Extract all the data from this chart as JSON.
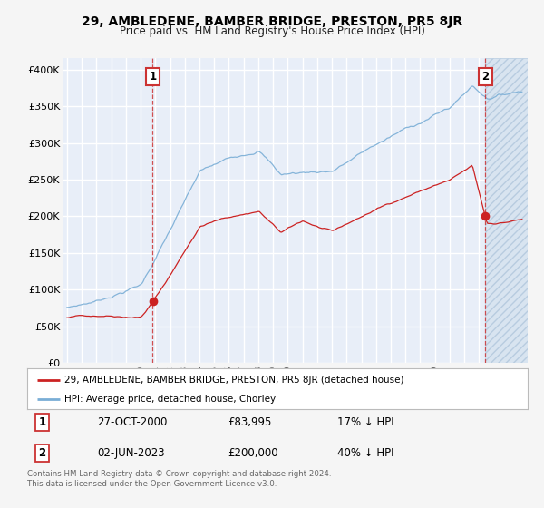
{
  "title": "29, AMBLEDENE, BAMBER BRIDGE, PRESTON, PR5 8JR",
  "subtitle": "Price paid vs. HM Land Registry's House Price Index (HPI)",
  "background_color": "#f5f5f5",
  "plot_bg_color": "#e8eef8",
  "grid_color": "#ffffff",
  "hpi_line_color": "#7aaed6",
  "price_line_color": "#cc2222",
  "vline_color": "#cc3333",
  "marker_color": "#cc2222",
  "sale1_date_num": 2000.82,
  "sale1_price": 83995,
  "sale2_date_num": 2023.42,
  "sale2_price": 200000,
  "yticks": [
    0,
    50000,
    100000,
    150000,
    200000,
    250000,
    300000,
    350000,
    400000
  ],
  "ytick_labels": [
    "£0",
    "£50K",
    "£100K",
    "£150K",
    "£200K",
    "£250K",
    "£300K",
    "£350K",
    "£400K"
  ],
  "xmin": 1994.7,
  "xmax": 2026.3,
  "ymin": 0,
  "ymax": 415000,
  "legend_line1": "29, AMBLEDENE, BAMBER BRIDGE, PRESTON, PR5 8JR (detached house)",
  "legend_line2": "HPI: Average price, detached house, Chorley",
  "table_row1": [
    "1",
    "27-OCT-2000",
    "£83,995",
    "17% ↓ HPI"
  ],
  "table_row2": [
    "2",
    "02-JUN-2023",
    "£200,000",
    "40% ↓ HPI"
  ],
  "footnote1": "Contains HM Land Registry data © Crown copyright and database right 2024.",
  "footnote2": "This data is licensed under the Open Government Licence v3.0."
}
